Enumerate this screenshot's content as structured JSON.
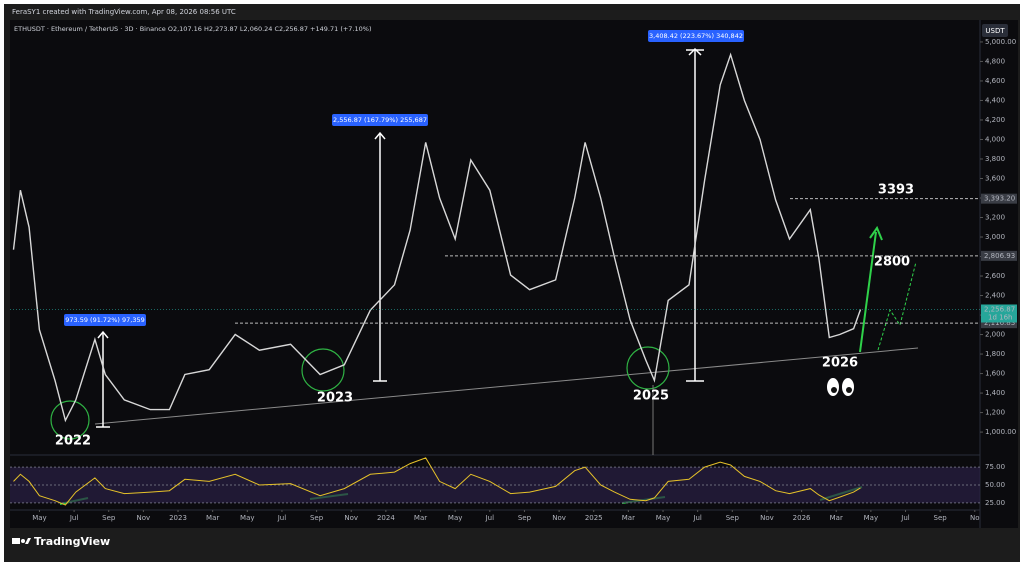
{
  "chart_data": {
    "type": "line",
    "credit": "FeraSY1 created with TradingView.com, Apr 08, 2026 08:56 UTC",
    "title": "ETHUSDT · Ethereum / TetherUS · 3D · Binance  O2,107.16 H2,273.87 L2,060.24 C2,256.87 +149.71 (+7.10%)",
    "currency": "USDT",
    "countdown": "1d 16h",
    "x": [
      2.5,
      2.9,
      3.4,
      4,
      4.9,
      5.5,
      6.1,
      7.2,
      7.8,
      8.9,
      10.4,
      11.5,
      12.4,
      13.8,
      15.3,
      16.7,
      18.5,
      20.2,
      21.6,
      23.1,
      24.5,
      25.4,
      26.3,
      27.1,
      28,
      28.9,
      30,
      31.2,
      32.3,
      33.8,
      34.9,
      35.5,
      36.4,
      37.2,
      38.1,
      39,
      39.5,
      40.3,
      41.5,
      42.4,
      43.3,
      43.9,
      44.7,
      45.6,
      46.5,
      47.3,
      48.5,
      49,
      49.6,
      50.2,
      51,
      51.4
    ],
    "series": [
      {
        "name": "ETHUSDT",
        "color": "#d8d8d8",
        "values": [
          2870,
          3480,
          3100,
          2050,
          1530,
          1120,
          1330,
          1950,
          1590,
          1330,
          1230,
          1230,
          1590,
          1640,
          2000,
          1840,
          1900,
          1590,
          1690,
          2250,
          2510,
          3070,
          3970,
          3400,
          2980,
          3790,
          3480,
          2610,
          2460,
          2560,
          3400,
          3970,
          3400,
          2790,
          2150,
          1740,
          1530,
          2350,
          2510,
          3580,
          4560,
          4870,
          4400,
          4000,
          3380,
          2980,
          3280,
          2780,
          1970,
          2000,
          2060,
          2256.87
        ]
      },
      {
        "name": "RSI",
        "color": "#e6c229",
        "axis": "y2",
        "values": [
          55,
          65,
          55,
          35,
          28,
          22,
          40,
          60,
          45,
          38,
          40,
          42,
          58,
          55,
          65,
          50,
          52,
          35,
          45,
          65,
          68,
          80,
          88,
          55,
          45,
          65,
          55,
          38,
          40,
          48,
          70,
          75,
          50,
          40,
          30,
          28,
          32,
          55,
          58,
          75,
          82,
          78,
          62,
          55,
          42,
          38,
          45,
          36,
          28,
          33,
          40,
          46
        ]
      }
    ],
    "xlim": [
      2.3,
      58.3
    ],
    "xticks": [
      {
        "value": 4,
        "label": "May"
      },
      {
        "value": 6,
        "label": "Jul"
      },
      {
        "value": 8,
        "label": "Sep"
      },
      {
        "value": 10,
        "label": "Nov"
      },
      {
        "value": 12,
        "label": "2023"
      },
      {
        "value": 14,
        "label": "Mar"
      },
      {
        "value": 16,
        "label": "May"
      },
      {
        "value": 18,
        "label": "Jul"
      },
      {
        "value": 20,
        "label": "Sep"
      },
      {
        "value": 22,
        "label": "Nov"
      },
      {
        "value": 24,
        "label": "2024"
      },
      {
        "value": 26,
        "label": "Mar"
      },
      {
        "value": 28,
        "label": "May"
      },
      {
        "value": 30,
        "label": "Jul"
      },
      {
        "value": 32,
        "label": "Sep"
      },
      {
        "value": 34,
        "label": "Nov"
      },
      {
        "value": 36,
        "label": "2025"
      },
      {
        "value": 38,
        "label": "Mar"
      },
      {
        "value": 40,
        "label": "May"
      },
      {
        "value": 42,
        "label": "Jul"
      },
      {
        "value": 44,
        "label": "Sep"
      },
      {
        "value": 46,
        "label": "Nov"
      },
      {
        "value": 48,
        "label": "2026"
      },
      {
        "value": 50,
        "label": "Mar"
      },
      {
        "value": 52,
        "label": "May"
      },
      {
        "value": 54,
        "label": "Jul"
      },
      {
        "value": 56,
        "label": "Sep"
      },
      {
        "value": 58,
        "label": "No"
      }
    ],
    "ylim": [
      765,
      5225
    ],
    "yticks": [
      {
        "value": 1000,
        "label": "1,000.00"
      },
      {
        "value": 1200,
        "label": "1,200"
      },
      {
        "value": 1400,
        "label": "1,400"
      },
      {
        "value": 1600,
        "label": "1,600"
      },
      {
        "value": 1800,
        "label": "1,800"
      },
      {
        "value": 2000,
        "label": "2,000"
      },
      {
        "value": 2200,
        "label": "2,200"
      },
      {
        "value": 2400,
        "label": "2,400"
      },
      {
        "value": 2600,
        "label": "2,600"
      },
      {
        "value": 2800,
        "label": "2,800"
      },
      {
        "value": 3000,
        "label": "3,000"
      },
      {
        "value": 3200,
        "label": "3,200"
      },
      {
        "value": 3400,
        "label": "3,400"
      },
      {
        "value": 3600,
        "label": "3,600"
      },
      {
        "value": 3800,
        "label": "3,800"
      },
      {
        "value": 4000,
        "label": "4,000"
      },
      {
        "value": 4200,
        "label": "4,200"
      },
      {
        "value": 4400,
        "label": "4,400"
      },
      {
        "value": 4600,
        "label": "4,600"
      },
      {
        "value": 4800,
        "label": "4,800"
      },
      {
        "value": 5000,
        "label": "5,000.00"
      }
    ],
    "y2lim": [
      15,
      92
    ],
    "y2ticks": [
      {
        "value": 75,
        "label": "75.00"
      },
      {
        "value": 50,
        "label": "50.00"
      },
      {
        "value": 25,
        "label": "25.00"
      }
    ],
    "levels": [
      {
        "value": 3393.2,
        "label": "3,393.20"
      },
      {
        "value": 2806.93,
        "label": "2,806.93"
      },
      {
        "value": 2116.83,
        "label": "2,116.83"
      }
    ],
    "last_price": {
      "value": 2256.87,
      "label": "2,256.87"
    },
    "measures": [
      "973.59 (91.72%) 97,359",
      "2,556.87 (167.79%) 255,687",
      "3,408.42 (223.67%) 340,842"
    ],
    "annotations": [
      "2022",
      "2023",
      "2025",
      "2026",
      "3393",
      "2800"
    ],
    "brand": "TradingView"
  }
}
